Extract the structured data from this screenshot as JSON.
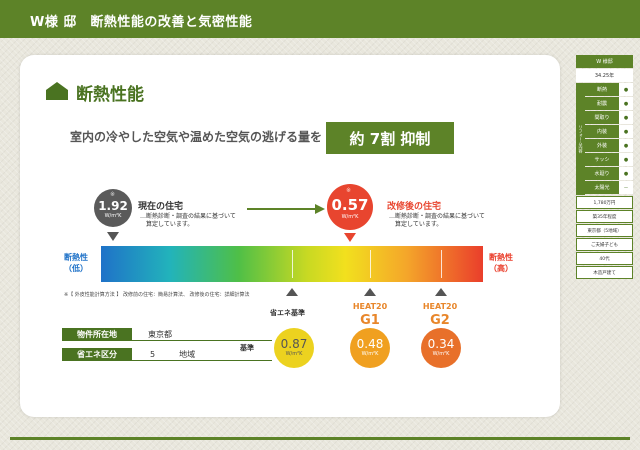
{
  "header": {
    "title": "W様 邸　断熱性能の改善と気密性能"
  },
  "section": {
    "title": "断熱性能"
  },
  "lead": {
    "text": "室内の冷やした空気や温めた空気の逃げる量を",
    "badge": "約 7割 抑制"
  },
  "current": {
    "value": "1.92",
    "unit": "W/m²K",
    "label": "現在の住宅",
    "note1": "…断熱診断・調査の結果に基づいて",
    "note2": "算定しています。",
    "mark": "※"
  },
  "after": {
    "value": "0.57",
    "unit": "W/m²K",
    "label": "改修後の住宅",
    "note1": "…断熱診断・調査の結果に基づいて",
    "note2": "算定しています。",
    "mark": "※"
  },
  "scale": {
    "low_label_1": "断熱性",
    "low_label_2": "（低）",
    "high_label_1": "断熱性",
    "high_label_2": "（高）",
    "low_color": "#1f72c8",
    "high_color": "#ea3e2b"
  },
  "footnote": "※【 外皮性能計算方法 】 改修前の住宅：簡易計算法、 改修後の住宅：詳細計算法",
  "benchmarks": {
    "std_label": "基準",
    "items": [
      {
        "label_top": "省エネ基準",
        "label_big": "",
        "value": "0.87",
        "unit": "W/m²K",
        "color": "#ecd21f"
      },
      {
        "label_top": "HEAT20",
        "label_big": "G1",
        "value": "0.48",
        "unit": "W/m²K",
        "color": "#f0a020"
      },
      {
        "label_top": "HEAT20",
        "label_big": "G2",
        "value": "0.34",
        "unit": "W/m²K",
        "color": "#e8702a"
      }
    ]
  },
  "property": [
    {
      "key": "物件所在地",
      "value": "東京都",
      "extra": ""
    },
    {
      "key": "省エネ区分",
      "value": "5",
      "extra": "地域"
    }
  ],
  "sidebar": {
    "name": "W 様邸",
    "age": "34.25年",
    "group_label": "リフォーム内容",
    "rows": [
      {
        "name": "断熱",
        "mark": "●"
      },
      {
        "name": "耐震",
        "mark": "●"
      },
      {
        "name": "間取り",
        "mark": "●"
      },
      {
        "name": "内装",
        "mark": "●"
      },
      {
        "name": "外装",
        "mark": "●"
      },
      {
        "name": "サッシ",
        "mark": "●"
      },
      {
        "name": "水廻り",
        "mark": "●"
      },
      {
        "name": "太陽光",
        "mark": "－"
      }
    ],
    "info": [
      "1,780万円",
      "築35年程度",
      "東京都（5地域）",
      "ご夫婦子ども",
      "40代",
      "木造戸建て"
    ]
  }
}
